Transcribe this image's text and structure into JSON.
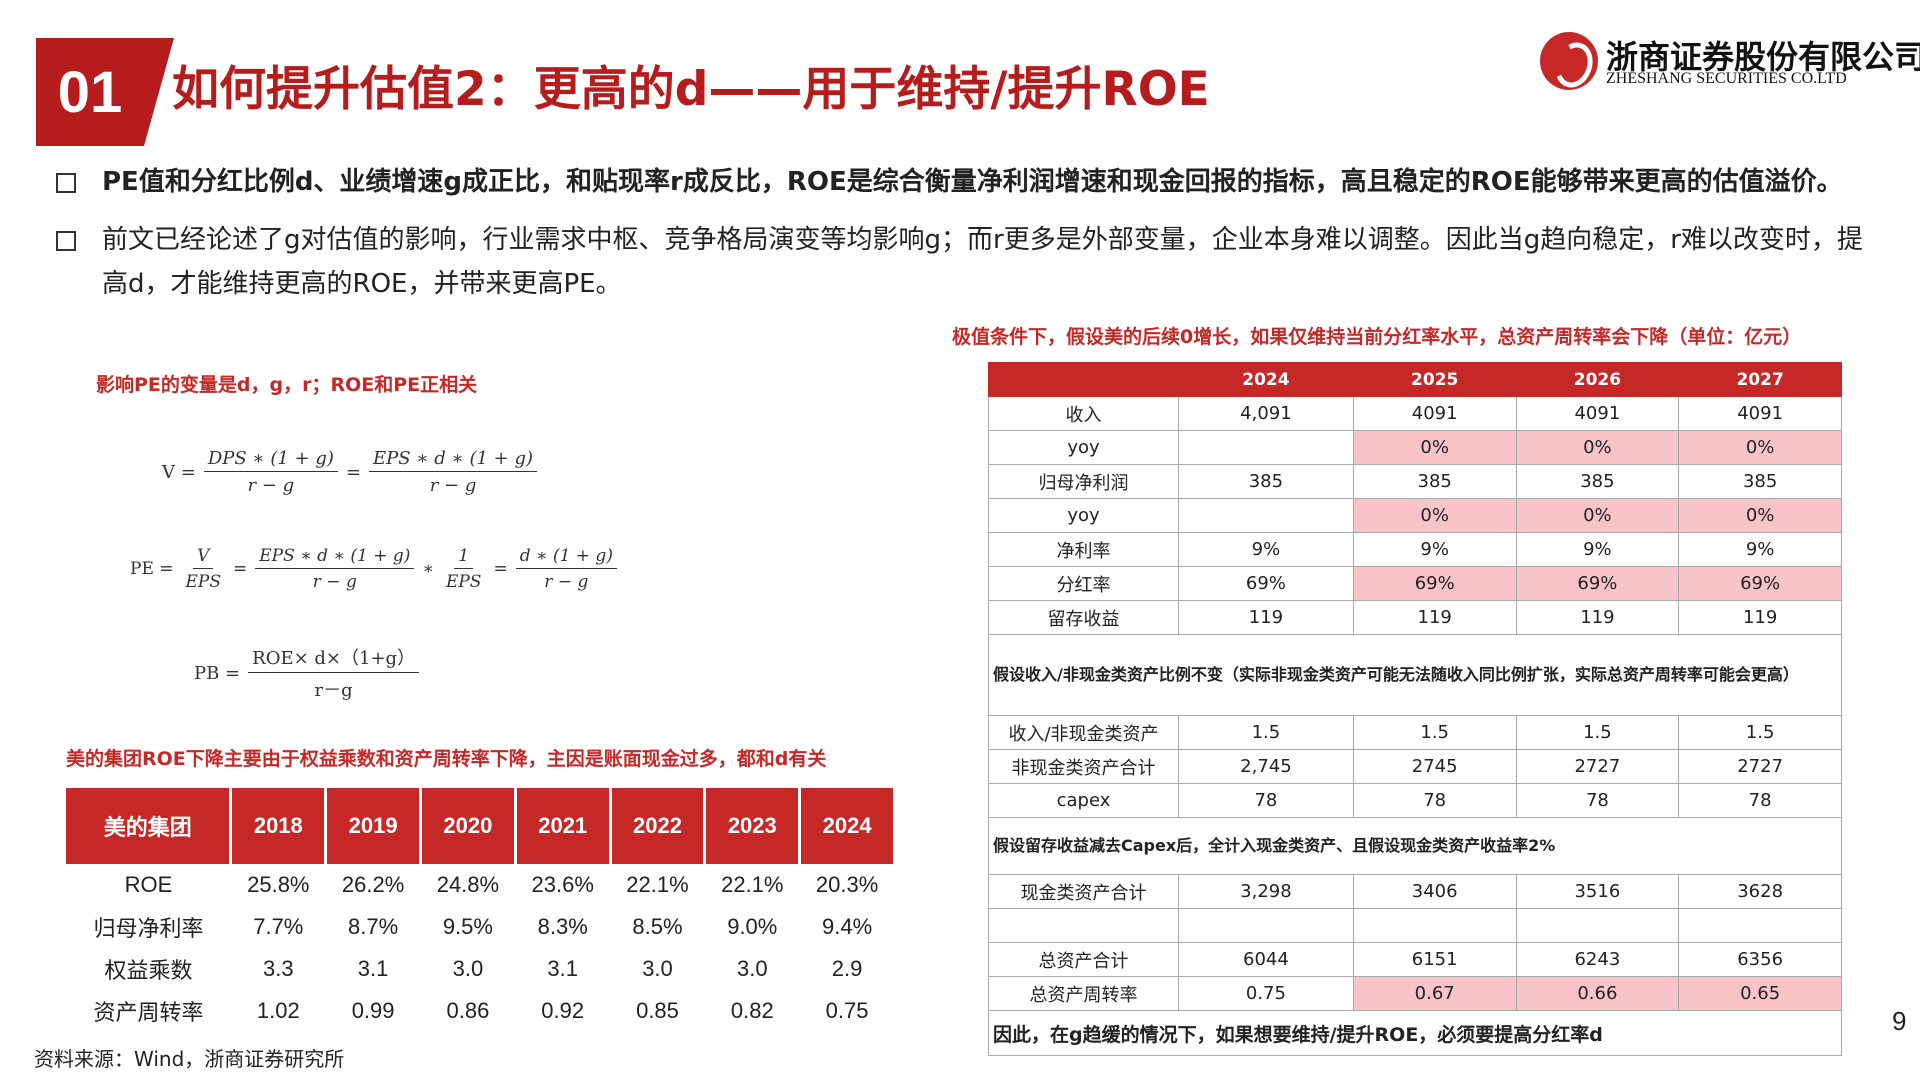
{
  "header": {
    "section_number": "01",
    "title": "如何提升估值2：更高的d——用于维持/提升ROE",
    "logo_cn": "浙商证券股份有限公司",
    "logo_en": "ZHESHANG SECURITIES CO.LTD"
  },
  "bullets": [
    "PE值和分红比例d、业绩增速g成正比，和贴现率r成反比，ROE是综合衡量净利润增速和现金回报的指标，高且稳定的ROE能够带来更高的估值溢价。",
    "前文已经论述了g对估值的影响，行业需求中枢、竞争格局演变等均影响g；而r更多是外部变量，企业本身难以调整。因此当g趋向稳定，r难以改变时，提高d，才能维持更高的ROE，并带来更高PE。"
  ],
  "left_caption_top": "影响PE的变量是d，g，r；ROE和PE正相关",
  "formulas": {
    "v_label": "V =",
    "v_frac1_num": "DPS ∗ (1 + g)",
    "v_frac1_den": "r − g",
    "v_eq": "=",
    "v_frac2_num": "EPS ∗ d ∗ (1 + g)",
    "v_frac2_den": "r − g",
    "pe_label": "PE =",
    "pe_frac1_num": "V",
    "pe_frac1_den": "EPS",
    "pe_eq1": "=",
    "pe_frac2_num": "EPS ∗ d ∗ (1 + g)",
    "pe_frac2_den": "r − g",
    "pe_times": "∗",
    "pe_frac3_num": "1",
    "pe_frac3_den": "EPS",
    "pe_eq2": "=",
    "pe_frac4_num": "d ∗ (1 + g)",
    "pe_frac4_den": "r − g",
    "pb_label": "PB =",
    "pb_num": "ROE× d×（1+g）",
    "pb_den": "r－g"
  },
  "left_caption_bottom": "美的集团ROE下降主要由于权益乘数和资产周转率下降，主因是账面现金过多，都和d有关",
  "midea_table": {
    "headers": [
      "美的集团",
      "2018",
      "2019",
      "2020",
      "2021",
      "2022",
      "2023",
      "2024"
    ],
    "rows": [
      [
        "ROE",
        "25.8%",
        "26.2%",
        "24.8%",
        "23.6%",
        "22.1%",
        "22.1%",
        "20.3%"
      ],
      [
        "归母净利率",
        "7.7%",
        "8.7%",
        "9.5%",
        "8.3%",
        "8.5%",
        "9.0%",
        "9.4%"
      ],
      [
        "权益乘数",
        "3.3",
        "3.1",
        "3.0",
        "3.1",
        "3.0",
        "3.0",
        "2.9"
      ],
      [
        "资产周转率",
        "1.02",
        "0.99",
        "0.86",
        "0.92",
        "0.85",
        "0.82",
        "0.75"
      ]
    ]
  },
  "right_caption": "极值条件下，假设美的后续0增长，如果仅维持当前分红率水平，总资产周转率会下降（单位：亿元）",
  "proj_table": {
    "headers": [
      "",
      "2024",
      "2025",
      "2026",
      "2027"
    ],
    "block1": [
      [
        "收入",
        "4,091",
        "4091",
        "4091",
        "4091"
      ],
      [
        "yoy",
        "",
        "0%",
        "0%",
        "0%"
      ],
      [
        "归母净利润",
        "385",
        "385",
        "385",
        "385"
      ],
      [
        "yoy",
        "",
        "0%",
        "0%",
        "0%"
      ],
      [
        "净利率",
        "9%",
        "9%",
        "9%",
        "9%"
      ],
      [
        "分红率",
        "69%",
        "69%",
        "69%",
        "69%"
      ],
      [
        "留存收益",
        "119",
        "119",
        "119",
        "119"
      ]
    ],
    "note1": "假设收入/非现金类资产比例不变（实际非现金类资产可能无法随收入同比例扩张，实际总资产周转率可能会更高）",
    "block2": [
      [
        "收入/非现金类资产",
        "1.5",
        "1.5",
        "1.5",
        "1.5"
      ],
      [
        "非现金类资产合计",
        "2,745",
        "2745",
        "2727",
        "2727"
      ],
      [
        "capex",
        "78",
        "78",
        "78",
        "78"
      ]
    ],
    "note2": "假设留存收益减去Capex后，全计入现金类资产、且假设现金类资产收益率2%",
    "block3": [
      [
        "现金类资产合计",
        "3,298",
        "3406",
        "3516",
        "3628"
      ],
      [
        "",
        "",
        "",
        "",
        ""
      ],
      [
        "总资产合计",
        "6044",
        "6151",
        "6243",
        "6356"
      ],
      [
        "总资产周转率",
        "0.75",
        "0.67",
        "0.66",
        "0.65"
      ]
    ],
    "conclusion": "因此，在g趋缓的情况下，如果想要维持/提升ROE，必须要提高分红率d"
  },
  "source": "资料来源：Wind，浙商证券研究所",
  "page_number": "9",
  "colors": {
    "brand_red": "#c62828",
    "highlight_pink": "#f9c4c8"
  }
}
